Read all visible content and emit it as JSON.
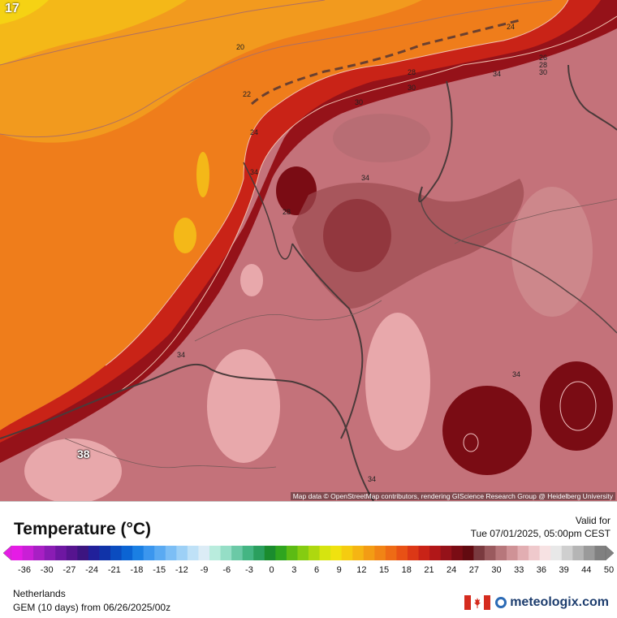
{
  "map": {
    "corner_value": "17",
    "max_label": "38",
    "contour_labels": [
      "20",
      "22",
      "24",
      "34",
      "28",
      "24",
      "28",
      "30",
      "30",
      "34",
      "34",
      "26",
      "28",
      "30",
      "34",
      "34",
      "34"
    ],
    "credit": "Map data © OpenStreetMap contributors, rendering GIScience Research Group @ Heidelberg University"
  },
  "legend": {
    "title": "Temperature (°C)",
    "valid_label": "Valid for",
    "valid_time": "Tue 07/01/2025, 05:00pm CEST",
    "ticks": [
      "-36",
      "-30",
      "-27",
      "-24",
      "-21",
      "-18",
      "-15",
      "-12",
      "-9",
      "-6",
      "-3",
      "0",
      "3",
      "6",
      "9",
      "12",
      "15",
      "18",
      "21",
      "24",
      "27",
      "30",
      "33",
      "36",
      "39",
      "44",
      "50"
    ],
    "colors": [
      "#e51ce5",
      "#c91fd6",
      "#a81fc4",
      "#8a1cb4",
      "#6e17a2",
      "#56148f",
      "#3c1580",
      "#21209a",
      "#1033a8",
      "#0b4cbf",
      "#0b64d3",
      "#1a7fe3",
      "#3b96ee",
      "#5aaaf2",
      "#7cbef5",
      "#9dd0f6",
      "#bfe1f7",
      "#dcecf6",
      "#b9ecdd",
      "#95dec6",
      "#6bc9a6",
      "#44b583",
      "#2a9f5e",
      "#1a8c2e",
      "#2fa51f",
      "#5cbb14",
      "#85cc11",
      "#aed80f",
      "#d6e40f",
      "#f0e20f",
      "#f5cc10",
      "#f5b513",
      "#f39c14",
      "#f18415",
      "#ee6b15",
      "#e85115",
      "#dc3816",
      "#c92317",
      "#b11718",
      "#951219",
      "#7a0c14",
      "#620a10",
      "#7a3a3f",
      "#9a5a5e",
      "#b7777b",
      "#cf9296",
      "#e2aeb2",
      "#efc9cc",
      "#f7e2e3",
      "#e8e8e8",
      "#cfcfcf",
      "#b5b5b5",
      "#9a9a9a",
      "#808080"
    ]
  },
  "footer": {
    "region": "Netherlands",
    "model_run": "GEM (10 days) from  06/26/2025/00z",
    "brand": "meteologix.com"
  }
}
